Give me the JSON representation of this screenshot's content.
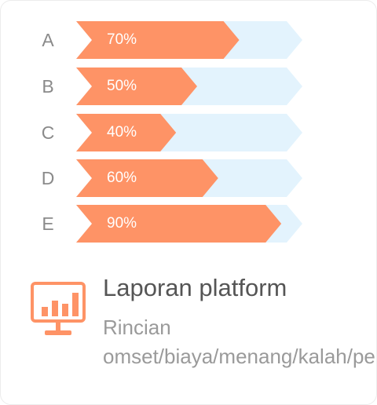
{
  "chart_data": {
    "type": "bar",
    "categories": [
      "A",
      "B",
      "C",
      "D",
      "E"
    ],
    "values": [
      70,
      50,
      40,
      60,
      90
    ],
    "value_labels": [
      "70%",
      "50%",
      "40%",
      "60%",
      "90%"
    ],
    "unit": "%",
    "ylim": [
      0,
      100
    ],
    "colors": {
      "fill": "#fe9366",
      "track": "#e3f3fd"
    }
  },
  "info": {
    "icon": "monitor-chart-icon",
    "title": "Laporan platform",
    "description": "Rincian omset/biaya/menang/kalah/pendapatan"
  },
  "colors": {
    "accent": "#fe9366",
    "track": "#e3f3fd",
    "title_text": "#555555",
    "muted_text": "#9a9a9a"
  }
}
